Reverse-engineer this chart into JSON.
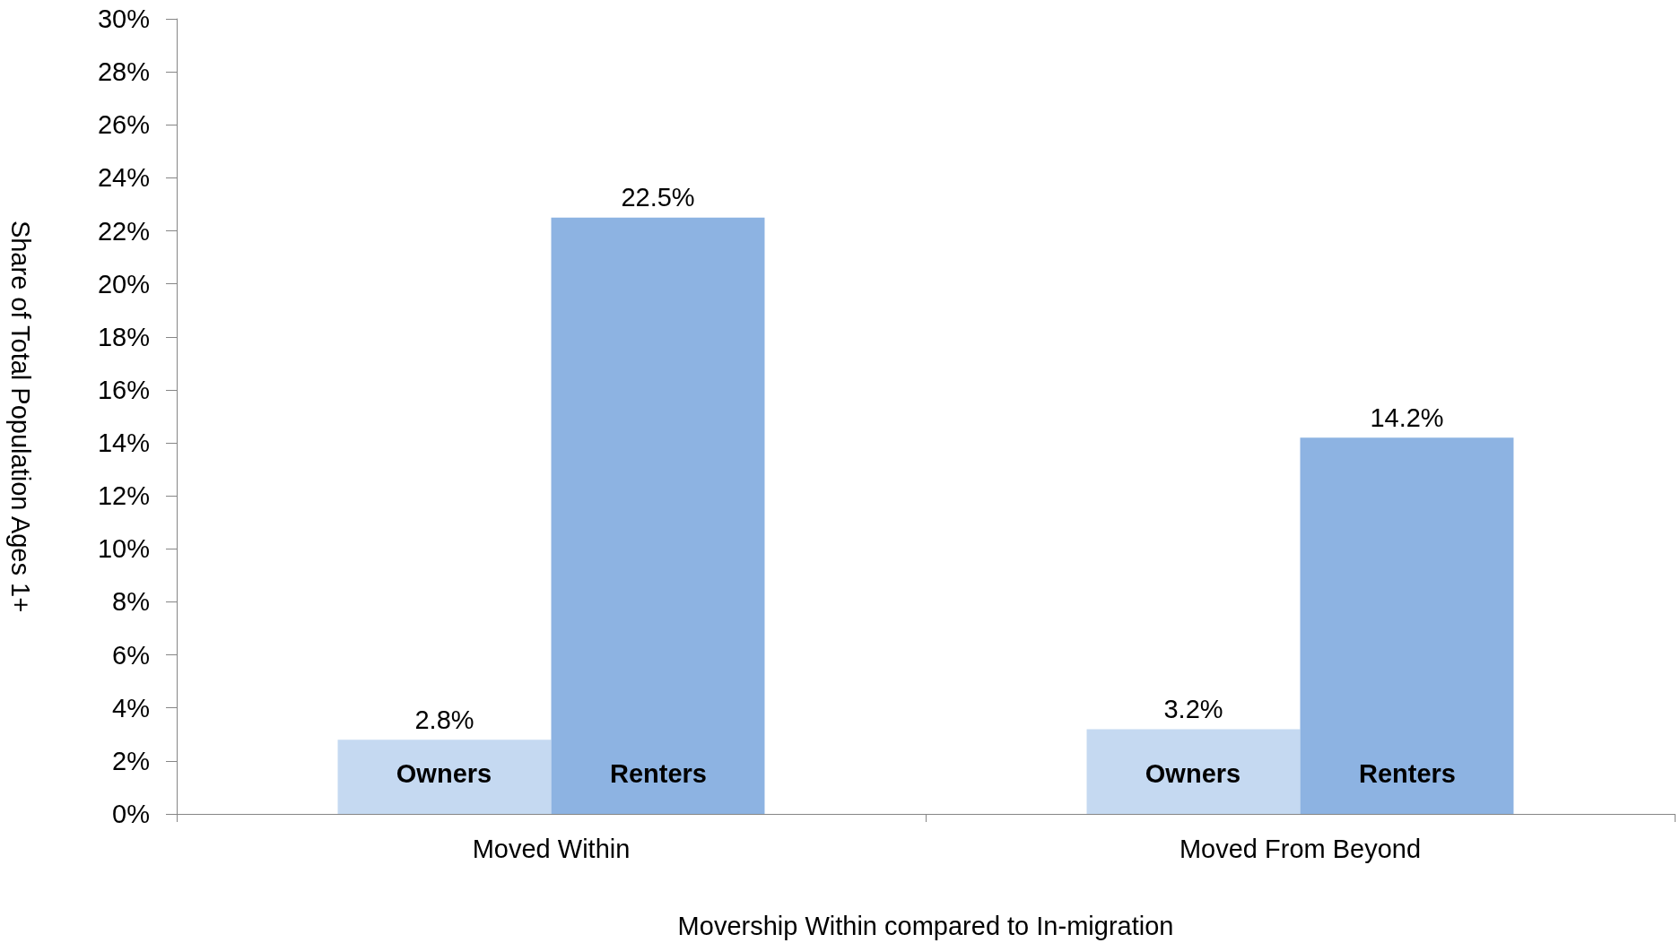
{
  "chart_data": {
    "type": "bar",
    "xlabel": "Movership Within compared to In-migration",
    "ylabel": "Share of Total Population Ages 1+",
    "categories": [
      "Moved Within",
      "Moved From Beyond"
    ],
    "series": [
      {
        "name": "Owners",
        "color": "#c5d9f1",
        "values": [
          2.8,
          3.2
        ],
        "value_labels": [
          "2.8%",
          "3.2%"
        ]
      },
      {
        "name": "Renters",
        "color": "#8db3e2",
        "values": [
          22.5,
          14.2
        ],
        "value_labels": [
          "22.5%",
          "14.2%"
        ]
      }
    ],
    "ylim": [
      0,
      30
    ],
    "yticks": [
      {
        "value": 0,
        "label": "0%"
      },
      {
        "value": 2,
        "label": "2%"
      },
      {
        "value": 4,
        "label": "4%"
      },
      {
        "value": 6,
        "label": "6%"
      },
      {
        "value": 8,
        "label": "8%"
      },
      {
        "value": 10,
        "label": "10%"
      },
      {
        "value": 12,
        "label": "12%"
      },
      {
        "value": 14,
        "label": "14%"
      },
      {
        "value": 16,
        "label": "16%"
      },
      {
        "value": 18,
        "label": "18%"
      },
      {
        "value": 20,
        "label": "20%"
      },
      {
        "value": 22,
        "label": "22%"
      },
      {
        "value": 24,
        "label": "24%"
      },
      {
        "value": 26,
        "label": "26%"
      },
      {
        "value": 28,
        "label": "28%"
      },
      {
        "value": 30,
        "label": "30%"
      }
    ],
    "grid": false,
    "legend": false
  }
}
